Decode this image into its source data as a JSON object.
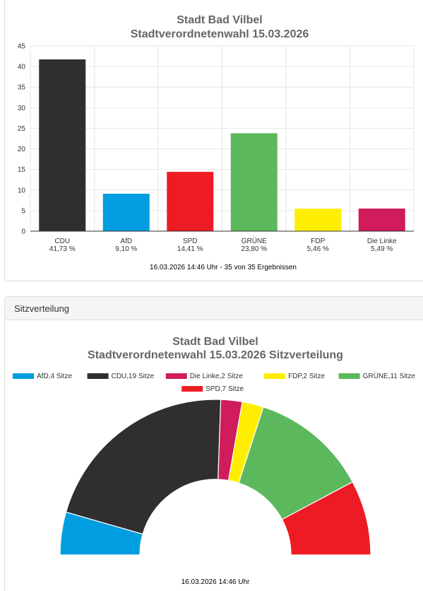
{
  "bar_panel": {
    "caption": "16.03.2026 14:46 Uhr - 35 von 35 Ergebnissen"
  },
  "seat_panel": {
    "header": "Sitzverteilung",
    "caption": "16.03.2026 14:46 Uhr"
  },
  "chart_data": [
    {
      "type": "bar",
      "title": "Stadt Bad Vilbel",
      "subtitle": "Stadtverordnetenwahl 15.03.2026",
      "xlabel": "",
      "ylabel": "",
      "ylim": [
        0,
        45
      ],
      "yticks": [
        0,
        5,
        10,
        15,
        20,
        25,
        30,
        35,
        40,
        45
      ],
      "grid": true,
      "categories": [
        "CDU",
        "AfD",
        "SPD",
        "GRÜNE",
        "FDP",
        "Die Linke"
      ],
      "values": [
        41.73,
        9.1,
        14.41,
        23.8,
        5.46,
        5.49
      ],
      "value_labels": [
        "41,73 %",
        "9,10 %",
        "14,41 %",
        "23,80 %",
        "5,46 %",
        "5,49 %"
      ],
      "colors": [
        "#302e2f",
        "#009ee0",
        "#ed1c24",
        "#5cb85c",
        "#ffee00",
        "#d01c5c"
      ]
    },
    {
      "type": "pie",
      "variant": "semicircle",
      "title": "Stadt Bad Vilbel",
      "subtitle": "Stadtverordnetenwahl 15.03.2026 Sitzverteilung",
      "legend_position": "top",
      "slices": [
        {
          "name": "AfD",
          "value": 4,
          "legend": "AfD,4 Sitze",
          "color": "#009ee0"
        },
        {
          "name": "CDU",
          "value": 19,
          "legend": "CDU,19 Sitze",
          "color": "#302e2f"
        },
        {
          "name": "Die Linke",
          "value": 2,
          "legend": "Die Linke,2 Sitze",
          "color": "#d01c5c"
        },
        {
          "name": "FDP",
          "value": 2,
          "legend": "FDP,2 Sitze",
          "color": "#ffee00"
        },
        {
          "name": "GRÜNE",
          "value": 11,
          "legend": "GRÜNE,11 Sitze",
          "color": "#5cb85c"
        },
        {
          "name": "SPD",
          "value": 7,
          "legend": "SPD,7 Sitze",
          "color": "#ed1c24"
        }
      ]
    }
  ]
}
